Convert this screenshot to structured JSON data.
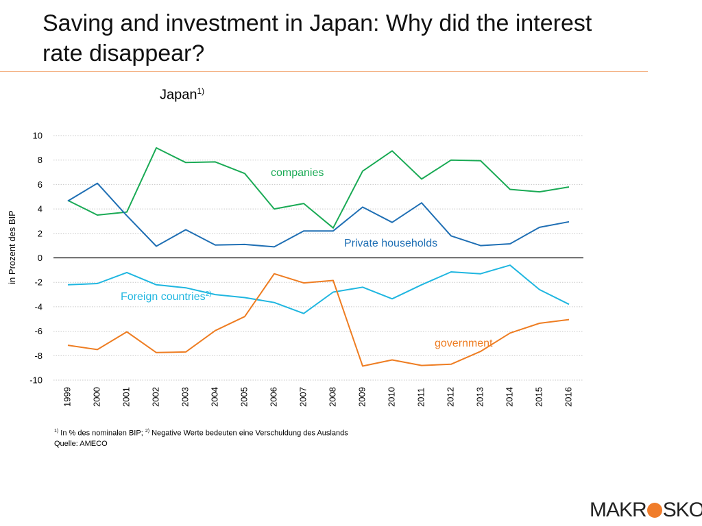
{
  "page": {
    "title": "Saving and investment in Japan: Why did the interest rate disappear?",
    "chart_title": "Japan",
    "chart_title_sup": "1)",
    "footnote_sup1": "1)",
    "footnote_text1": " In % des nominalen BIP; ",
    "footnote_sup2": "2)",
    "footnote_text2": " Negative Werte bedeuten eine Verschuldung des Auslands",
    "source": "Quelle: AMECO",
    "logo_left": "MAKR",
    "logo_right": "SKOP"
  },
  "chart_data": {
    "type": "line",
    "title": "Japan",
    "xlabel": "",
    "ylabel": "in Prozent des BIP",
    "ylim": [
      -10,
      10
    ],
    "yticks": [
      10,
      8,
      6,
      4,
      2,
      0,
      -2,
      -4,
      -6,
      -8,
      -10
    ],
    "ytick_labels": [
      "10",
      "8",
      "6",
      "4",
      "2",
      "0",
      "-2",
      "-4",
      "-6",
      "-8",
      "-10"
    ],
    "grid": true,
    "categories": [
      "1999",
      "2000",
      "2001",
      "2002",
      "2003",
      "2004",
      "2005",
      "2006",
      "2007",
      "2008",
      "2009",
      "2010",
      "2011",
      "2012",
      "2013",
      "2014",
      "2015",
      "2016"
    ],
    "series": [
      {
        "name": "companies",
        "label": "companies",
        "label_sup": "",
        "color": "#1aaa55",
        "values": [
          4.7,
          3.5,
          3.75,
          9.0,
          7.8,
          7.85,
          6.9,
          4.0,
          4.45,
          2.45,
          7.1,
          8.75,
          6.45,
          8.0,
          7.95,
          5.6,
          5.4,
          5.8
        ]
      },
      {
        "name": "private-households",
        "label": "Private households",
        "label_sup": "",
        "color": "#1f6fb4",
        "values": [
          4.65,
          6.1,
          3.45,
          0.95,
          2.3,
          1.05,
          1.1,
          0.9,
          2.2,
          2.2,
          4.15,
          2.9,
          4.5,
          1.8,
          1.0,
          1.15,
          2.5,
          2.95
        ]
      },
      {
        "name": "foreign-countries",
        "label": "Foreign countries",
        "label_sup": "2)",
        "color": "#1fb6e0",
        "values": [
          -2.2,
          -2.1,
          -1.2,
          -2.2,
          -2.45,
          -3.0,
          -3.25,
          -3.65,
          -4.55,
          -2.8,
          -2.4,
          -3.35,
          -2.2,
          -1.15,
          -1.3,
          -0.6,
          -2.6,
          -3.8
        ]
      },
      {
        "name": "government",
        "label": "government",
        "label_sup": "",
        "color": "#ee7d22",
        "values": [
          -7.15,
          -7.5,
          -6.05,
          -7.75,
          -7.7,
          -5.95,
          -4.8,
          -1.3,
          -2.05,
          -1.85,
          -8.85,
          -8.35,
          -8.8,
          -8.7,
          -7.65,
          -6.15,
          -5.35,
          -5.05
        ]
      }
    ]
  }
}
